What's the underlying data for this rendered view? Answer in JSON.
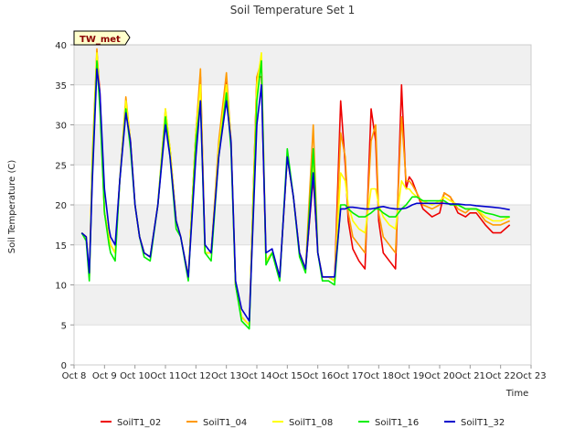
{
  "chart_data": {
    "type": "line",
    "title": "Soil Temperature Set 1",
    "xlabel": "Time",
    "ylabel": "Soil Temperature (C)",
    "badge": "TW_met",
    "xlim": [
      8,
      23
    ],
    "ylim": [
      0,
      40
    ],
    "x_ticks": [
      8,
      9,
      10,
      11,
      12,
      13,
      14,
      15,
      16,
      17,
      18,
      19,
      20,
      21,
      22,
      23
    ],
    "x_tick_labels": [
      "Oct 8",
      "Oct 9",
      "Oct 10",
      "Oct 11",
      "Oct 12",
      "Oct 13",
      "Oct 14",
      "Oct 15",
      "Oct 16",
      "Oct 17",
      "Oct 18",
      "Oct 19",
      "Oct 20",
      "Oct 21",
      "Oct 22",
      "Oct 23"
    ],
    "y_ticks": [
      0,
      5,
      10,
      15,
      20,
      25,
      30,
      35,
      40
    ],
    "grid": true,
    "banded_background": true,
    "legend_position": "bottom",
    "series": [
      {
        "name": "SoilT1_02",
        "color": "#ee0000",
        "x": [
          8.25,
          8.4,
          8.5,
          8.6,
          8.75,
          8.85,
          9.0,
          9.15,
          9.2,
          9.35,
          9.5,
          9.7,
          9.85,
          10.0,
          10.15,
          10.3,
          10.5,
          10.75,
          11.0,
          11.15,
          11.35,
          11.5,
          11.75,
          12.0,
          12.15,
          12.3,
          12.5,
          12.75,
          13.0,
          13.15,
          13.3,
          13.5,
          13.75,
          14.0,
          14.15,
          14.3,
          14.5,
          14.75,
          15.0,
          15.2,
          15.4,
          15.6,
          15.85,
          16.0,
          16.15,
          16.35,
          16.55,
          16.75,
          16.9,
          17.0,
          17.15,
          17.35,
          17.55,
          17.75,
          17.9,
          18.0,
          18.15,
          18.35,
          18.55,
          18.75,
          18.9,
          19.0,
          19.1,
          19.25,
          19.45,
          19.75,
          20.0,
          20.15,
          20.35,
          20.6,
          20.85,
          21.0,
          21.2,
          21.5,
          21.75,
          22.0,
          22.3
        ],
        "y": [
          16.5,
          16.0,
          11.0,
          25,
          39,
          34,
          19,
          16,
          15,
          14,
          23,
          33,
          28,
          20,
          16,
          14,
          13.5,
          20,
          31,
          27,
          18,
          16,
          11,
          29,
          36,
          14,
          14,
          27,
          35.5,
          28,
          10,
          6,
          5,
          36,
          36,
          13,
          14,
          11,
          26,
          21,
          14,
          12,
          23.5,
          14,
          11,
          11,
          10.5,
          33,
          25,
          18,
          14.5,
          13,
          12,
          32,
          28,
          18,
          14,
          13,
          12,
          35,
          22,
          23.5,
          23,
          21.5,
          19.5,
          18.5,
          19,
          21.5,
          21,
          19,
          18.5,
          19,
          19,
          17.5,
          16.5,
          16.5,
          17.5
        ]
      },
      {
        "name": "SoilT1_04",
        "color": "#ff9900",
        "x": [
          8.25,
          8.4,
          8.5,
          8.6,
          8.75,
          8.85,
          9.0,
          9.15,
          9.2,
          9.35,
          9.5,
          9.7,
          9.85,
          10.0,
          10.15,
          10.3,
          10.5,
          10.75,
          11.0,
          11.15,
          11.35,
          11.5,
          11.75,
          12.0,
          12.15,
          12.3,
          12.5,
          12.75,
          13.0,
          13.15,
          13.3,
          13.5,
          13.75,
          14.0,
          14.15,
          14.3,
          14.5,
          14.75,
          15.0,
          15.2,
          15.4,
          15.6,
          15.85,
          16.0,
          16.15,
          16.35,
          16.55,
          16.75,
          16.9,
          17.0,
          17.15,
          17.35,
          17.55,
          17.75,
          17.9,
          18.0,
          18.15,
          18.35,
          18.55,
          18.75,
          18.9,
          19.0,
          19.1,
          19.25,
          19.45,
          19.75,
          20.0,
          20.15,
          20.35,
          20.6,
          20.85,
          21.0,
          21.2,
          21.5,
          21.75,
          22.0,
          22.3
        ],
        "y": [
          16.5,
          16.0,
          11.0,
          26,
          39.5,
          33,
          19,
          16,
          15,
          14,
          23,
          33.5,
          28,
          20,
          16,
          14,
          13.5,
          20,
          32,
          27,
          18,
          16,
          11,
          29,
          37,
          14,
          14,
          28,
          36.5,
          28,
          10,
          6,
          5,
          36,
          38,
          13,
          14,
          11,
          26,
          21,
          14,
          12,
          30,
          14,
          11,
          11,
          10.5,
          29,
          26,
          19,
          16,
          15,
          14,
          28,
          30,
          19,
          16,
          15,
          14,
          31,
          23,
          23,
          22.5,
          21.5,
          20,
          19.5,
          20,
          21.5,
          21,
          19.5,
          19,
          19.5,
          19.5,
          18,
          17.5,
          17.5,
          18
        ]
      },
      {
        "name": "SoilT1_08",
        "color": "#ffff00",
        "x": [
          8.25,
          8.4,
          8.5,
          8.6,
          8.75,
          8.85,
          9.0,
          9.15,
          9.2,
          9.35,
          9.5,
          9.7,
          9.85,
          10.0,
          10.15,
          10.3,
          10.5,
          10.75,
          11.0,
          11.15,
          11.35,
          11.5,
          11.75,
          12.0,
          12.15,
          12.3,
          12.5,
          12.75,
          13.0,
          13.15,
          13.3,
          13.5,
          13.75,
          14.0,
          14.15,
          14.3,
          14.5,
          14.75,
          15.0,
          15.2,
          15.4,
          15.6,
          15.85,
          16.0,
          16.15,
          16.35,
          16.55,
          16.75,
          16.9,
          17.0,
          17.15,
          17.35,
          17.55,
          17.75,
          17.9,
          18.0,
          18.15,
          18.35,
          18.55,
          18.75,
          18.9,
          19.0,
          19.1,
          19.25,
          19.45,
          19.75,
          20.0,
          20.15,
          20.35,
          20.6,
          20.85,
          21.0,
          21.2,
          21.5,
          21.75,
          22.0,
          22.3
        ],
        "y": [
          16.5,
          16.0,
          11.0,
          25,
          39,
          33,
          19,
          16,
          15,
          14,
          23,
          33,
          28,
          20,
          16,
          14,
          13.5,
          20,
          32,
          27,
          18,
          16,
          11,
          29,
          35,
          14,
          14,
          27,
          35,
          28,
          10,
          6,
          5,
          35,
          39,
          13,
          14,
          11,
          26,
          21,
          14,
          12,
          25,
          14,
          11,
          11,
          10.5,
          24,
          23,
          20,
          18,
          17,
          16.5,
          22,
          22,
          20,
          18.5,
          17.5,
          17,
          23,
          22,
          22,
          21.5,
          21,
          20.5,
          20,
          20.5,
          21,
          20.5,
          20,
          19.5,
          19.5,
          19.5,
          18.5,
          18,
          18,
          18.5
        ]
      },
      {
        "name": "SoilT1_16",
        "color": "#00ee00",
        "x": [
          8.25,
          8.4,
          8.5,
          8.6,
          8.75,
          8.85,
          9.0,
          9.15,
          9.2,
          9.35,
          9.5,
          9.7,
          9.85,
          10.0,
          10.15,
          10.3,
          10.5,
          10.75,
          11.0,
          11.15,
          11.35,
          11.5,
          11.75,
          12.0,
          12.15,
          12.3,
          12.5,
          12.75,
          13.0,
          13.15,
          13.3,
          13.5,
          13.75,
          14.0,
          14.15,
          14.3,
          14.5,
          14.75,
          15.0,
          15.2,
          15.4,
          15.6,
          15.85,
          16.0,
          16.15,
          16.35,
          16.55,
          16.75,
          16.9,
          17.0,
          17.15,
          17.35,
          17.55,
          17.75,
          17.9,
          18.0,
          18.15,
          18.35,
          18.55,
          18.75,
          18.9,
          19.0,
          19.1,
          19.25,
          19.45,
          19.75,
          20.0,
          20.15,
          20.35,
          20.6,
          20.85,
          21.0,
          21.2,
          21.5,
          21.75,
          22.0,
          22.3
        ],
        "y": [
          16.5,
          15.5,
          10.5,
          24,
          38,
          32,
          19,
          15,
          14,
          13,
          23,
          32,
          27,
          20,
          16,
          13.5,
          13,
          20,
          31,
          26,
          17,
          16,
          10.5,
          28,
          33,
          14,
          13,
          26,
          34,
          27,
          10,
          5.5,
          4.5,
          33,
          38,
          12.5,
          14,
          10.5,
          27,
          21,
          13.5,
          11.5,
          27,
          14,
          10.5,
          10.5,
          10,
          20,
          20,
          19.5,
          19,
          18.5,
          18.5,
          19,
          19.5,
          19.5,
          19,
          18.5,
          18.5,
          19.5,
          20,
          20.5,
          21,
          21,
          20.5,
          20.5,
          20.5,
          20.5,
          20,
          20,
          19.5,
          19.5,
          19.5,
          19,
          18.8,
          18.5,
          18.5
        ]
      },
      {
        "name": "SoilT1_32",
        "color": "#0000cc",
        "x": [
          8.25,
          8.4,
          8.5,
          8.6,
          8.75,
          8.85,
          9.0,
          9.15,
          9.2,
          9.35,
          9.5,
          9.7,
          9.85,
          10.0,
          10.15,
          10.3,
          10.5,
          10.75,
          11.0,
          11.15,
          11.35,
          11.5,
          11.75,
          12.0,
          12.15,
          12.3,
          12.5,
          12.75,
          13.0,
          13.15,
          13.3,
          13.5,
          13.75,
          14.0,
          14.15,
          14.3,
          14.5,
          14.75,
          15.0,
          15.2,
          15.4,
          15.6,
          15.85,
          16.0,
          16.15,
          16.35,
          16.55,
          16.75,
          16.9,
          17.0,
          17.15,
          17.35,
          17.55,
          17.75,
          17.9,
          18.0,
          18.15,
          18.35,
          18.55,
          18.75,
          18.9,
          19.0,
          19.1,
          19.25,
          19.45,
          19.75,
          20.0,
          20.15,
          20.35,
          20.6,
          20.85,
          21.0,
          21.2,
          21.5,
          21.75,
          22.0,
          22.3
        ],
        "y": [
          16.5,
          16.0,
          11.5,
          23,
          37,
          34,
          22,
          17,
          16,
          15,
          23,
          31.5,
          28,
          20,
          16,
          14,
          13.5,
          20,
          30,
          26,
          18,
          16,
          11,
          26,
          33,
          15,
          14,
          26,
          33,
          28,
          10.5,
          7,
          5.5,
          30,
          35,
          14,
          14.5,
          11,
          26,
          21,
          14,
          12,
          24,
          14,
          11,
          11,
          11,
          19.5,
          19.5,
          19.7,
          19.7,
          19.6,
          19.5,
          19.5,
          19.6,
          19.7,
          19.8,
          19.6,
          19.5,
          19.5,
          19.6,
          19.8,
          20,
          20.2,
          20.2,
          20.2,
          20.2,
          20.2,
          20.1,
          20.1,
          20,
          20,
          19.9,
          19.8,
          19.7,
          19.6,
          19.4
        ]
      }
    ]
  }
}
